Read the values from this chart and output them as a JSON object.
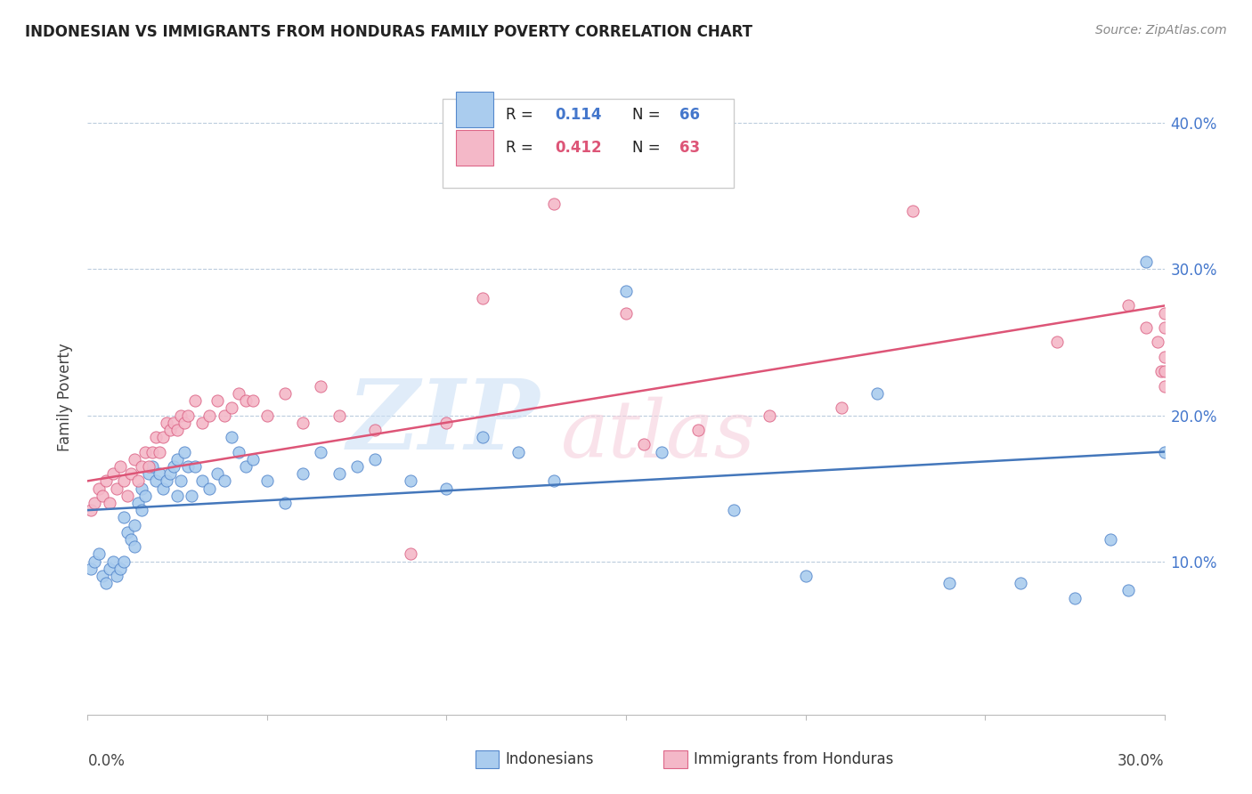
{
  "title": "INDONESIAN VS IMMIGRANTS FROM HONDURAS FAMILY POVERTY CORRELATION CHART",
  "source": "Source: ZipAtlas.com",
  "ylabel": "Family Poverty",
  "xlim": [
    0.0,
    0.3
  ],
  "ylim": [
    -0.005,
    0.43
  ],
  "yticks": [
    0.0,
    0.1,
    0.2,
    0.3,
    0.4
  ],
  "ytick_labels": [
    "",
    "10.0%",
    "20.0%",
    "30.0%",
    "40.0%"
  ],
  "blue_color": "#aaccee",
  "pink_color": "#f4b8c8",
  "blue_edge_color": "#5588cc",
  "pink_edge_color": "#dd6688",
  "blue_line_color": "#4477bb",
  "pink_line_color": "#dd5577",
  "legend_r_color": "#4477cc",
  "legend_n_color": "#4477cc",
  "legend_r2_color": "#dd5577",
  "legend_n2_color": "#dd5577",
  "watermark_zip_color": "#cce0f5",
  "watermark_atlas_color": "#f5d0dc",
  "blue_x": [
    0.001,
    0.002,
    0.003,
    0.004,
    0.005,
    0.006,
    0.007,
    0.008,
    0.009,
    0.01,
    0.01,
    0.011,
    0.012,
    0.013,
    0.013,
    0.014,
    0.015,
    0.015,
    0.016,
    0.017,
    0.018,
    0.019,
    0.02,
    0.021,
    0.022,
    0.023,
    0.024,
    0.025,
    0.025,
    0.026,
    0.027,
    0.028,
    0.029,
    0.03,
    0.032,
    0.034,
    0.036,
    0.038,
    0.04,
    0.042,
    0.044,
    0.046,
    0.05,
    0.055,
    0.06,
    0.065,
    0.07,
    0.075,
    0.08,
    0.09,
    0.1,
    0.11,
    0.12,
    0.13,
    0.15,
    0.16,
    0.18,
    0.2,
    0.22,
    0.24,
    0.26,
    0.275,
    0.285,
    0.29,
    0.295,
    0.3
  ],
  "blue_y": [
    0.095,
    0.1,
    0.105,
    0.09,
    0.085,
    0.095,
    0.1,
    0.09,
    0.095,
    0.1,
    0.13,
    0.12,
    0.115,
    0.11,
    0.125,
    0.14,
    0.135,
    0.15,
    0.145,
    0.16,
    0.165,
    0.155,
    0.16,
    0.15,
    0.155,
    0.16,
    0.165,
    0.17,
    0.145,
    0.155,
    0.175,
    0.165,
    0.145,
    0.165,
    0.155,
    0.15,
    0.16,
    0.155,
    0.185,
    0.175,
    0.165,
    0.17,
    0.155,
    0.14,
    0.16,
    0.175,
    0.16,
    0.165,
    0.17,
    0.155,
    0.15,
    0.185,
    0.175,
    0.155,
    0.285,
    0.175,
    0.135,
    0.09,
    0.215,
    0.085,
    0.085,
    0.075,
    0.115,
    0.08,
    0.305,
    0.175
  ],
  "pink_x": [
    0.001,
    0.002,
    0.003,
    0.004,
    0.005,
    0.006,
    0.007,
    0.008,
    0.009,
    0.01,
    0.011,
    0.012,
    0.013,
    0.014,
    0.015,
    0.016,
    0.017,
    0.018,
    0.019,
    0.02,
    0.021,
    0.022,
    0.023,
    0.024,
    0.025,
    0.026,
    0.027,
    0.028,
    0.03,
    0.032,
    0.034,
    0.036,
    0.038,
    0.04,
    0.042,
    0.044,
    0.046,
    0.05,
    0.055,
    0.06,
    0.065,
    0.07,
    0.08,
    0.09,
    0.1,
    0.11,
    0.13,
    0.15,
    0.155,
    0.17,
    0.19,
    0.21,
    0.23,
    0.27,
    0.29,
    0.295,
    0.298,
    0.299,
    0.3,
    0.3,
    0.3,
    0.3,
    0.3
  ],
  "pink_y": [
    0.135,
    0.14,
    0.15,
    0.145,
    0.155,
    0.14,
    0.16,
    0.15,
    0.165,
    0.155,
    0.145,
    0.16,
    0.17,
    0.155,
    0.165,
    0.175,
    0.165,
    0.175,
    0.185,
    0.175,
    0.185,
    0.195,
    0.19,
    0.195,
    0.19,
    0.2,
    0.195,
    0.2,
    0.21,
    0.195,
    0.2,
    0.21,
    0.2,
    0.205,
    0.215,
    0.21,
    0.21,
    0.2,
    0.215,
    0.195,
    0.22,
    0.2,
    0.19,
    0.105,
    0.195,
    0.28,
    0.345,
    0.27,
    0.18,
    0.19,
    0.2,
    0.205,
    0.34,
    0.25,
    0.275,
    0.26,
    0.25,
    0.23,
    0.22,
    0.27,
    0.26,
    0.24,
    0.23
  ],
  "blue_trend_start": 0.135,
  "blue_trend_end": 0.175,
  "pink_trend_start": 0.155,
  "pink_trend_end": 0.275
}
